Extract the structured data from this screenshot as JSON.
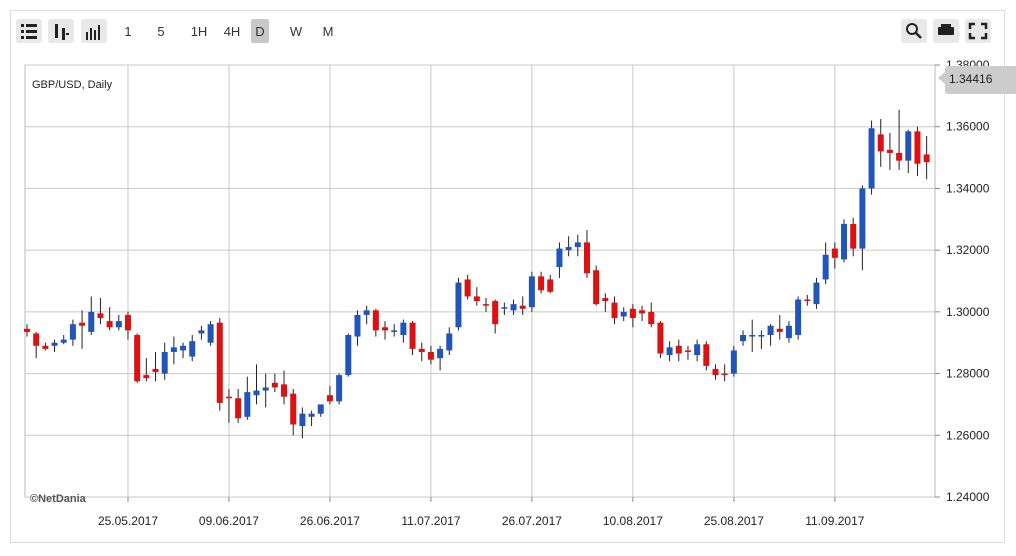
{
  "toolbar": {
    "intervals": [
      "1",
      "5",
      "1H",
      "4H",
      "D",
      "W",
      "M"
    ],
    "active_interval": 4
  },
  "watermark": "©NetDania",
  "chart_data": {
    "type": "candlestick",
    "title": "GBP/USD, Daily",
    "price_tag": "1.34416",
    "up_color": "#2255bb",
    "down_color": "#dd1111",
    "grid": true,
    "categories": [
      null,
      null,
      null,
      null,
      null,
      null,
      null,
      null,
      null,
      null,
      null,
      "25.05.2017",
      null,
      null,
      null,
      null,
      null,
      null,
      null,
      null,
      null,
      null,
      "09.06.2017",
      null,
      null,
      null,
      null,
      null,
      null,
      null,
      null,
      null,
      null,
      "26.06.2017",
      null,
      null,
      null,
      null,
      null,
      null,
      null,
      null,
      null,
      null,
      "11.07.2017",
      null,
      null,
      null,
      null,
      null,
      null,
      null,
      null,
      null,
      null,
      "26.07.2017",
      null,
      null,
      null,
      null,
      null,
      null,
      null,
      null,
      null,
      null,
      "10.08.2017",
      null,
      null,
      null,
      null,
      null,
      null,
      null,
      null,
      null,
      null,
      "25.08.2017",
      null,
      null,
      null,
      null,
      null,
      null,
      null,
      null,
      null,
      null,
      "11.09.2017",
      null,
      null,
      null,
      null,
      null,
      null,
      null,
      null,
      null,
      null
    ],
    "open": [
      1.2945,
      1.293,
      1.289,
      1.289,
      1.29,
      1.291,
      1.2965,
      1.2935,
      1.2995,
      1.297,
      1.295,
      1.299,
      1.2925,
      1.2795,
      1.2815,
      1.28,
      1.287,
      1.2875,
      1.2855,
      1.293,
      1.29,
      1.2965,
      1.2725,
      1.272,
      1.266,
      1.273,
      1.2745,
      1.277,
      1.2765,
      1.2735,
      1.263,
      1.266,
      1.267,
      1.273,
      1.271,
      1.2795,
      1.292,
      1.299,
      1.3005,
      1.295,
      1.2935,
      1.2925,
      1.2965,
      1.288,
      1.287,
      1.285,
      1.2875,
      1.295,
      1.3105,
      1.305,
      1.3025,
      1.3035,
      1.301,
      1.3005,
      1.302,
      1.3015,
      1.3115,
      1.3105,
      1.3145,
      1.32,
      1.321,
      1.3225,
      1.3135,
      1.3045,
      1.303,
      1.2985,
      1.301,
      1.3005,
      1.3,
      1.2965,
      1.286,
      1.289,
      1.2875,
      1.286,
      1.2895,
      1.2815,
      1.28,
      1.28,
      1.2905,
      1.292,
      1.292,
      1.2925,
      1.2945,
      1.2915,
      1.2925,
      1.304,
      1.3025,
      1.3105,
      1.3205,
      1.317,
      1.3285,
      1.3205,
      1.34,
      1.3575,
      1.3525,
      1.3515,
      1.349,
      1.3585,
      1.351
    ],
    "high": [
      1.296,
      1.2935,
      1.29,
      1.291,
      1.2925,
      1.2975,
      1.3005,
      1.305,
      1.3045,
      1.3015,
      1.299,
      1.3,
      1.293,
      1.285,
      1.287,
      1.29,
      1.292,
      1.29,
      1.2925,
      1.2955,
      1.297,
      1.298,
      1.275,
      1.275,
      1.279,
      1.283,
      1.28,
      1.28,
      1.281,
      1.275,
      1.269,
      1.268,
      1.27,
      1.276,
      1.28,
      1.293,
      1.3005,
      1.302,
      1.301,
      1.297,
      1.296,
      1.2975,
      1.297,
      1.29,
      1.289,
      1.289,
      1.295,
      1.311,
      1.312,
      1.308,
      1.3045,
      1.304,
      1.303,
      1.304,
      1.305,
      1.313,
      1.313,
      1.312,
      1.3225,
      1.3245,
      1.325,
      1.3265,
      1.315,
      1.306,
      1.305,
      1.3015,
      1.3025,
      1.302,
      1.303,
      1.297,
      1.2905,
      1.291,
      1.289,
      1.291,
      1.2905,
      1.283,
      1.283,
      1.289,
      1.294,
      1.2975,
      1.294,
      1.296,
      1.299,
      1.297,
      1.305,
      1.3055,
      1.311,
      1.3225,
      1.3225,
      1.33,
      1.3305,
      1.341,
      1.362,
      1.3625,
      1.358,
      1.3655,
      1.359,
      1.36,
      1.357
    ],
    "low": [
      1.292,
      1.285,
      1.2875,
      1.287,
      1.2895,
      1.289,
      1.288,
      1.2925,
      1.296,
      1.294,
      1.294,
      1.291,
      1.277,
      1.2775,
      1.2775,
      1.278,
      1.283,
      1.285,
      1.284,
      1.291,
      1.289,
      1.268,
      1.264,
      1.264,
      1.265,
      1.27,
      1.269,
      1.274,
      1.27,
      1.26,
      1.259,
      1.263,
      1.266,
      1.27,
      1.27,
      1.279,
      1.289,
      1.296,
      1.292,
      1.291,
      1.292,
      1.29,
      1.286,
      1.284,
      1.283,
      1.281,
      1.286,
      1.294,
      1.304,
      1.302,
      1.3,
      1.293,
      1.299,
      1.299,
      1.299,
      1.3,
      1.306,
      1.306,
      1.311,
      1.318,
      1.318,
      1.311,
      1.302,
      1.3,
      1.296,
      1.297,
      1.295,
      1.297,
      1.295,
      1.285,
      1.284,
      1.284,
      1.2845,
      1.284,
      1.281,
      1.278,
      1.2775,
      1.279,
      1.289,
      1.287,
      1.288,
      1.289,
      1.291,
      1.29,
      1.291,
      1.302,
      1.301,
      1.309,
      1.314,
      1.316,
      1.318,
      1.3135,
      1.338,
      1.347,
      1.346,
      1.346,
      1.345,
      1.344,
      1.343
    ],
    "close": [
      1.2935,
      1.289,
      1.288,
      1.29,
      1.291,
      1.296,
      1.2955,
      1.3,
      1.298,
      1.295,
      1.297,
      1.294,
      1.2775,
      1.2785,
      1.2805,
      1.287,
      1.2885,
      1.289,
      1.2905,
      1.294,
      1.296,
      1.2705,
      1.272,
      1.2655,
      1.274,
      1.2745,
      1.2755,
      1.2755,
      1.2725,
      1.2635,
      1.267,
      1.267,
      1.27,
      1.271,
      1.2795,
      1.2925,
      1.299,
      1.3005,
      1.294,
      1.294,
      1.294,
      1.2965,
      1.288,
      1.287,
      1.2845,
      1.288,
      1.293,
      1.3095,
      1.305,
      1.3035,
      1.302,
      1.296,
      1.3015,
      1.3025,
      1.301,
      1.3115,
      1.307,
      1.3065,
      1.3205,
      1.321,
      1.3225,
      1.3125,
      1.3025,
      1.3035,
      1.298,
      1.3,
      1.298,
      1.2995,
      1.296,
      1.2865,
      1.2885,
      1.2865,
      1.287,
      1.2895,
      1.2825,
      1.2795,
      1.2795,
      1.2875,
      1.2925,
      1.2925,
      1.2925,
      1.2955,
      1.2935,
      1.2955,
      1.304,
      1.3035,
      1.3095,
      1.3185,
      1.3175,
      1.3285,
      1.3205,
      1.34,
      1.3595,
      1.352,
      1.3515,
      1.349,
      1.3585,
      1.348,
      1.3485
    ],
    "ylim": [
      1.24,
      1.38
    ],
    "yticks": [
      {
        "value": 1.24,
        "label": "1.24000"
      },
      {
        "value": 1.26,
        "label": "1.26000"
      },
      {
        "value": 1.28,
        "label": "1.28000"
      },
      {
        "value": 1.3,
        "label": "1.30000"
      },
      {
        "value": 1.32,
        "label": "1.32000"
      },
      {
        "value": 1.34,
        "label": "1.34000"
      },
      {
        "value": 1.36,
        "label": "1.36000"
      },
      {
        "value": 1.38,
        "label": "1.38000"
      }
    ]
  }
}
